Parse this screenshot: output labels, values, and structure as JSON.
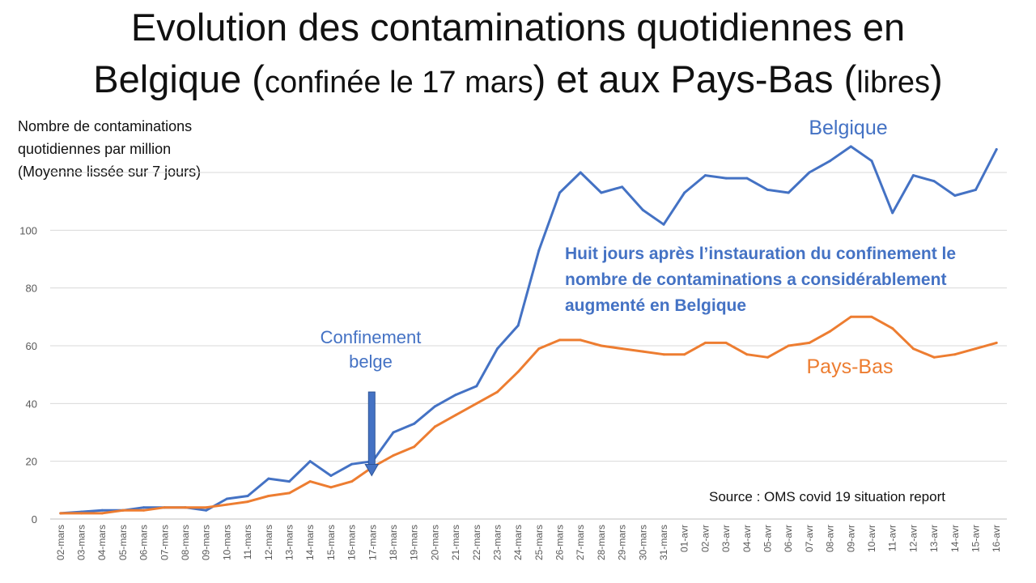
{
  "slide": {
    "title_line1": "Evolution des contaminations quotidiennes en",
    "title_line2_a": "Belgique (",
    "title_line2_b": "confinée le 17 mars",
    "title_line2_c": ") et aux Pays-Bas (",
    "title_line2_d": "libres",
    "title_line2_e": ")",
    "ylabel_lines": [
      "Nombre de contaminations",
      "quotidiennes par million",
      "(Moyenne lissée sur 7 jours)"
    ],
    "annotation_lines": [
      "Huit jours après l’instauration du confinement le",
      "nombre de contaminations a considérablement",
      "augmenté en Belgique"
    ],
    "confinement_lines": [
      "Confinement",
      "belge"
    ],
    "source": "Source : OMS covid 19 situation report"
  },
  "chart_data": {
    "type": "line",
    "title": "Evolution des contaminations quotidiennes en Belgique (confinée le 17 mars) et aux Pays-Bas (libres)",
    "ylabel": "Nombre de contaminations quotidiennes par million (Moyenne lissée sur 7 jours)",
    "xlabel": "",
    "ylim": [
      0,
      120
    ],
    "yticks": [
      0,
      20,
      40,
      60,
      80,
      100,
      120
    ],
    "ytick_labels": [
      "0",
      "20",
      "40",
      "60",
      "80",
      "100",
      ""
    ],
    "grid": "horizontal",
    "categories": [
      "02-mars",
      "03-mars",
      "04-mars",
      "05-mars",
      "06-mars",
      "07-mars",
      "08-mars",
      "09-mars",
      "10-mars",
      "11-mars",
      "12-mars",
      "13-mars",
      "14-mars",
      "15-mars",
      "16-mars",
      "17-mars",
      "18-mars",
      "19-mars",
      "20-mars",
      "21-mars",
      "22-mars",
      "23-mars",
      "24-mars",
      "25-mars",
      "26-mars",
      "27-mars",
      "28-mars",
      "29-mars",
      "30-mars",
      "31-mars",
      "01-avr",
      "02-avr",
      "03-avr",
      "04-avr",
      "05-avr",
      "06-avr",
      "07-avr",
      "08-avr",
      "09-avr",
      "10-avr",
      "11-avr",
      "12-avr",
      "13-avr",
      "14-avr",
      "15-avr",
      "16-avr"
    ],
    "series": [
      {
        "name": "Belgique",
        "color": "#4472c4",
        "values": [
          2,
          2.5,
          3,
          3,
          4,
          4,
          4,
          3,
          7,
          8,
          14,
          13,
          20,
          15,
          19,
          20,
          30,
          33,
          39,
          43,
          46,
          59,
          67,
          93,
          113,
          120,
          113,
          115,
          107,
          102,
          113,
          119,
          118,
          118,
          114,
          113,
          120,
          124,
          129,
          124,
          106,
          119,
          117,
          112,
          114,
          128
        ]
      },
      {
        "name": "Pays-Bas",
        "color": "#ed7d31",
        "values": [
          2,
          2,
          2,
          3,
          3,
          4,
          4,
          4,
          5,
          6,
          8,
          9,
          13,
          11,
          13,
          18,
          22,
          25,
          32,
          36,
          40,
          44,
          51,
          59,
          62,
          62,
          60,
          59,
          58,
          57,
          57,
          61,
          61,
          57,
          56,
          60,
          61,
          65,
          70,
          70,
          66,
          59,
          56,
          57,
          59,
          61
        ]
      }
    ],
    "annotations": [
      {
        "text": "Confinement belge",
        "x": "17-mars",
        "arrow_from": 44,
        "arrow_to": 15
      }
    ]
  }
}
